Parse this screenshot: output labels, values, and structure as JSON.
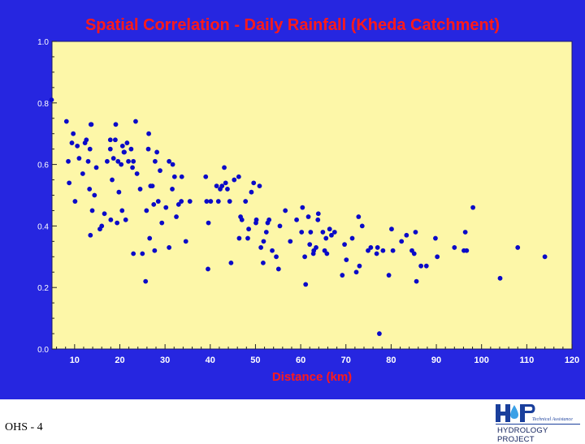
{
  "chart_data": {
    "type": "scatter",
    "title": "Spatial Correlation - Daily Rainfall (Kheda Catchment)",
    "xlabel": "Distance (km)",
    "ylabel": "",
    "xlim": [
      5,
      120
    ],
    "ylim": [
      0,
      1.0
    ],
    "x_ticks": [
      "10",
      "20",
      "30",
      "40",
      "50",
      "60",
      "70",
      "80",
      "90",
      "100",
      "110",
      "120"
    ],
    "y_ticks": [
      "0.0",
      "0.2",
      "0.4",
      "0.6",
      "0.8",
      "1.0"
    ],
    "grid": false,
    "point_color": "#0a0ac8",
    "points": [
      [
        4.9,
        0.81
      ],
      [
        8.2,
        0.74
      ],
      [
        8.6,
        0.61
      ],
      [
        8.8,
        0.54
      ],
      [
        9.4,
        0.67
      ],
      [
        9.7,
        0.7
      ],
      [
        10.1,
        0.48
      ],
      [
        10.6,
        0.66
      ],
      [
        11.0,
        0.62
      ],
      [
        11.8,
        0.57
      ],
      [
        12.3,
        0.67
      ],
      [
        12.6,
        0.68
      ],
      [
        13.0,
        0.61
      ],
      [
        13.3,
        0.52
      ],
      [
        13.6,
        0.73
      ],
      [
        13.7,
        0.73
      ],
      [
        13.4,
        0.65
      ],
      [
        13.5,
        0.37
      ],
      [
        13.9,
        0.45
      ],
      [
        14.4,
        0.5
      ],
      [
        14.8,
        0.59
      ],
      [
        15.6,
        0.39
      ],
      [
        16.0,
        0.4
      ],
      [
        16.6,
        0.44
      ],
      [
        17.2,
        0.61
      ],
      [
        17.9,
        0.65
      ],
      [
        17.9,
        0.68
      ],
      [
        18.0,
        0.42
      ],
      [
        18.3,
        0.55
      ],
      [
        18.6,
        0.62
      ],
      [
        19.0,
        0.68
      ],
      [
        19.1,
        0.73
      ],
      [
        19.4,
        0.41
      ],
      [
        19.6,
        0.61
      ],
      [
        19.8,
        0.51
      ],
      [
        20.3,
        0.6
      ],
      [
        20.5,
        0.45
      ],
      [
        20.6,
        0.66
      ],
      [
        20.9,
        0.64
      ],
      [
        21.0,
        0.64
      ],
      [
        21.3,
        0.42
      ],
      [
        21.6,
        0.67
      ],
      [
        21.9,
        0.61
      ],
      [
        22.5,
        0.65
      ],
      [
        22.8,
        0.59
      ],
      [
        23.0,
        0.61
      ],
      [
        23.0,
        0.31
      ],
      [
        23.5,
        0.74
      ],
      [
        23.8,
        0.57
      ],
      [
        24.5,
        0.52
      ],
      [
        25.0,
        0.31
      ],
      [
        25.7,
        0.22
      ],
      [
        25.9,
        0.45
      ],
      [
        26.3,
        0.65
      ],
      [
        26.4,
        0.7
      ],
      [
        26.6,
        0.36
      ],
      [
        26.8,
        0.53
      ],
      [
        27.2,
        0.53
      ],
      [
        27.5,
        0.47
      ],
      [
        27.7,
        0.32
      ],
      [
        27.8,
        0.61
      ],
      [
        28.2,
        0.64
      ],
      [
        28.5,
        0.48
      ],
      [
        28.9,
        0.58
      ],
      [
        29.3,
        0.41
      ],
      [
        30.2,
        0.46
      ],
      [
        30.9,
        0.33
      ],
      [
        30.9,
        0.61
      ],
      [
        31.6,
        0.52
      ],
      [
        31.7,
        0.6
      ],
      [
        32.1,
        0.56
      ],
      [
        32.5,
        0.43
      ],
      [
        33.0,
        0.47
      ],
      [
        33.6,
        0.48
      ],
      [
        33.7,
        0.56
      ],
      [
        34.6,
        0.35
      ],
      [
        35.5,
        0.48
      ],
      [
        39.0,
        0.56
      ],
      [
        39.2,
        0.48
      ],
      [
        39.5,
        0.26
      ],
      [
        39.6,
        0.41
      ],
      [
        40.1,
        0.48
      ],
      [
        41.4,
        0.53
      ],
      [
        41.8,
        0.48
      ],
      [
        42.2,
        0.52
      ],
      [
        42.6,
        0.53
      ],
      [
        43.1,
        0.59
      ],
      [
        43.4,
        0.54
      ],
      [
        43.8,
        0.52
      ],
      [
        44.3,
        0.48
      ],
      [
        44.6,
        0.28
      ],
      [
        45.3,
        0.55
      ],
      [
        46.3,
        0.56
      ],
      [
        46.4,
        0.36
      ],
      [
        46.7,
        0.43
      ],
      [
        47.0,
        0.42
      ],
      [
        47.8,
        0.48
      ],
      [
        48.3,
        0.36
      ],
      [
        48.5,
        0.39
      ],
      [
        49.1,
        0.51
      ],
      [
        49.6,
        0.54
      ],
      [
        50.1,
        0.41
      ],
      [
        50.2,
        0.42
      ],
      [
        50.9,
        0.53
      ],
      [
        51.2,
        0.33
      ],
      [
        51.7,
        0.28
      ],
      [
        51.8,
        0.35
      ],
      [
        52.4,
        0.38
      ],
      [
        52.7,
        0.41
      ],
      [
        53.0,
        0.42
      ],
      [
        53.7,
        0.32
      ],
      [
        54.6,
        0.3
      ],
      [
        55.1,
        0.26
      ],
      [
        55.4,
        0.4
      ],
      [
        56.6,
        0.45
      ],
      [
        57.7,
        0.35
      ],
      [
        59.1,
        0.42
      ],
      [
        60.2,
        0.38
      ],
      [
        60.4,
        0.46
      ],
      [
        60.9,
        0.3
      ],
      [
        61.1,
        0.21
      ],
      [
        61.7,
        0.43
      ],
      [
        62.0,
        0.34
      ],
      [
        62.2,
        0.38
      ],
      [
        62.8,
        0.31
      ],
      [
        62.9,
        0.32
      ],
      [
        63.4,
        0.33
      ],
      [
        63.8,
        0.42
      ],
      [
        63.9,
        0.44
      ],
      [
        64.9,
        0.38
      ],
      [
        65.3,
        0.32
      ],
      [
        65.6,
        0.36
      ],
      [
        65.8,
        0.31
      ],
      [
        66.4,
        0.39
      ],
      [
        66.8,
        0.37
      ],
      [
        67.5,
        0.38
      ],
      [
        69.2,
        0.24
      ],
      [
        69.7,
        0.34
      ],
      [
        70.1,
        0.29
      ],
      [
        71.4,
        0.36
      ],
      [
        72.3,
        0.25
      ],
      [
        72.8,
        0.43
      ],
      [
        73.0,
        0.27
      ],
      [
        73.6,
        0.4
      ],
      [
        74.9,
        0.32
      ],
      [
        75.5,
        0.33
      ],
      [
        76.8,
        0.31
      ],
      [
        77.0,
        0.33
      ],
      [
        77.4,
        0.05
      ],
      [
        78.2,
        0.32
      ],
      [
        79.5,
        0.24
      ],
      [
        80.1,
        0.39
      ],
      [
        80.4,
        0.32
      ],
      [
        82.3,
        0.35
      ],
      [
        83.4,
        0.37
      ],
      [
        84.6,
        0.32
      ],
      [
        85.1,
        0.31
      ],
      [
        85.4,
        0.38
      ],
      [
        85.6,
        0.22
      ],
      [
        86.6,
        0.27
      ],
      [
        87.8,
        0.27
      ],
      [
        89.8,
        0.36
      ],
      [
        90.2,
        0.3
      ],
      [
        94.0,
        0.33
      ],
      [
        96.1,
        0.32
      ],
      [
        96.7,
        0.32
      ],
      [
        96.4,
        0.38
      ],
      [
        98.1,
        0.46
      ],
      [
        104.1,
        0.23
      ],
      [
        108.0,
        0.33
      ],
      [
        114.0,
        0.3
      ]
    ]
  },
  "footer": {
    "slide_id": "OHS - 4",
    "logo_text": "HP",
    "logo_tagline": "Technical Assistance",
    "logo_project": "HYDROLOGY PROJECT",
    "plot_bg": "#fdf7a8",
    "panel_bg": "#2626e0",
    "title_color": "#ff1a1a"
  }
}
